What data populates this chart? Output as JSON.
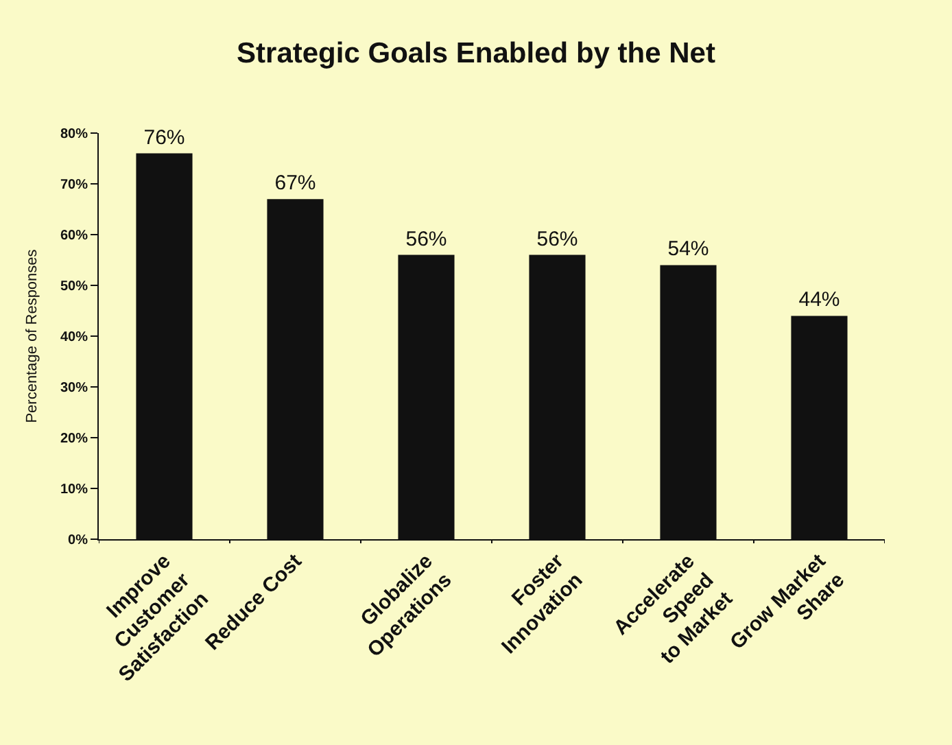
{
  "chart_data": {
    "type": "bar",
    "title": "Strategic Goals Enabled by the Net",
    "ylabel": "Percentage of Responses",
    "categories": [
      "Improve\nCustomer\nSatisfaction",
      "Reduce Cost",
      "Globalize\nOperations",
      "Foster\nInnovation",
      "Accelerate\nSpeed\nto Market",
      "Grow Market\nShare"
    ],
    "values": [
      76,
      67,
      56,
      56,
      54,
      44
    ],
    "value_labels": [
      "76%",
      "67%",
      "56%",
      "56%",
      "54%",
      "44%"
    ],
    "color": "#111111",
    "ylim": [
      0,
      80
    ],
    "yticks": [
      {
        "value": 0,
        "label": "0%"
      },
      {
        "value": 10,
        "label": "10%"
      },
      {
        "value": 20,
        "label": "20%"
      },
      {
        "value": 30,
        "label": "30%"
      },
      {
        "value": 40,
        "label": "40%"
      },
      {
        "value": 50,
        "label": "50%"
      },
      {
        "value": 60,
        "label": "60%"
      },
      {
        "value": 70,
        "label": "70%"
      },
      {
        "value": 80,
        "label": "80%"
      }
    ]
  }
}
